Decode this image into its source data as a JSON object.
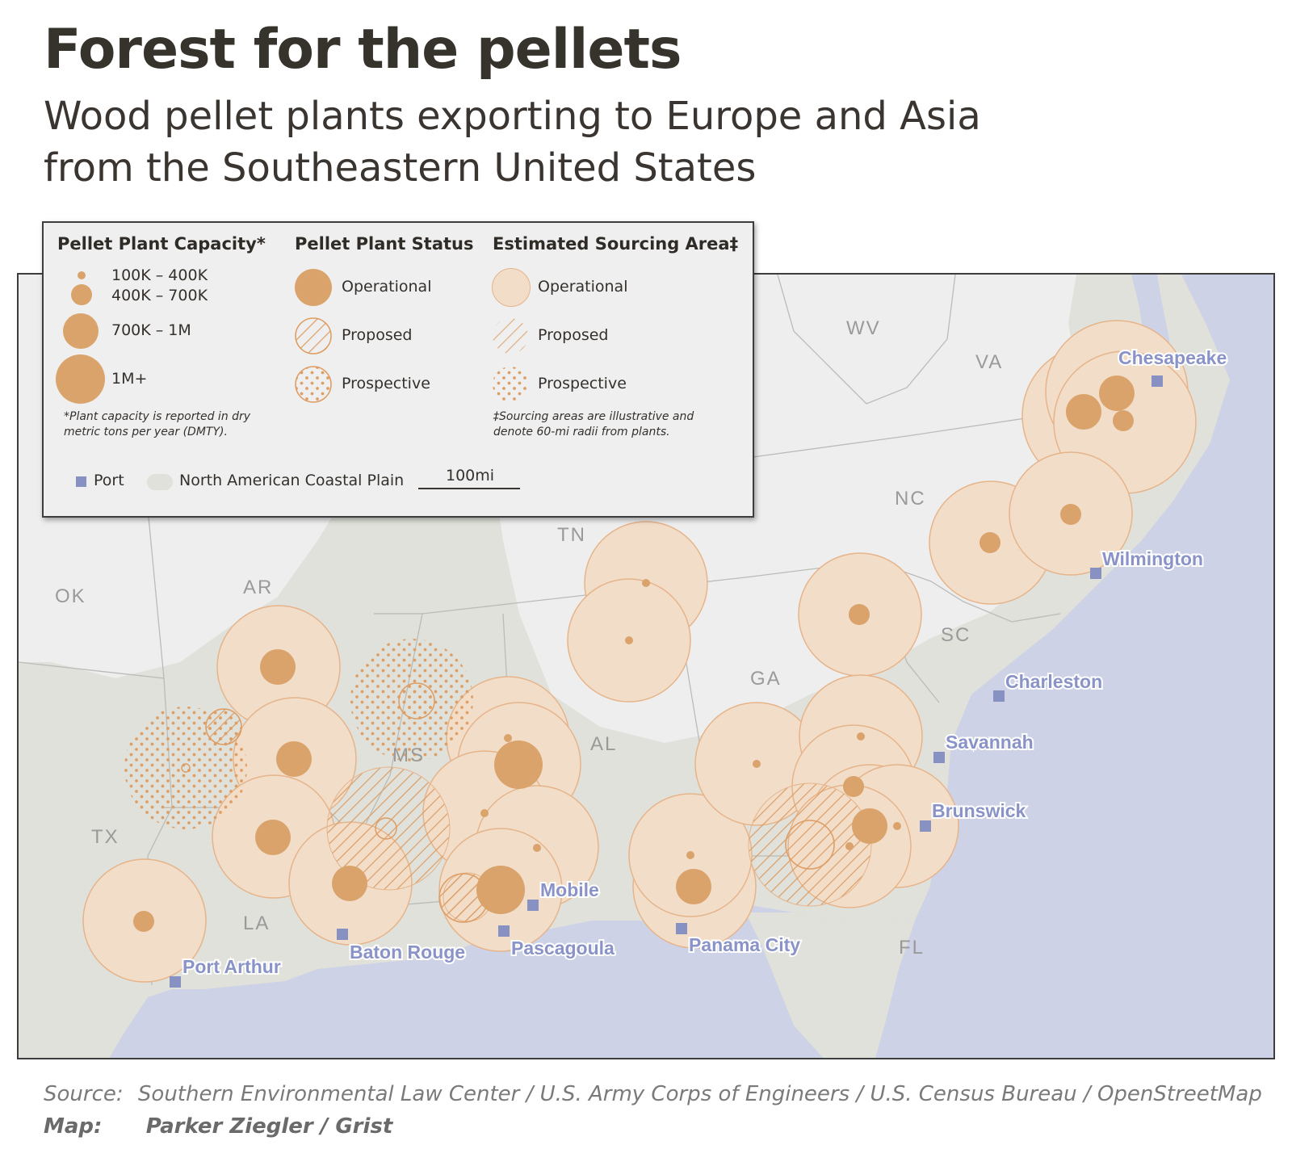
{
  "title": "Forest for the pellets",
  "subtitle_line1": "Wood pellet plants exporting to Europe and Asia",
  "subtitle_line2": "from the Southeastern United States",
  "colors": {
    "plant": "#d9a36b",
    "sourcing_fill": "#f2ddc9",
    "sourcing_stroke": "#e6b48a",
    "coastal_plain": "#dfe1da",
    "land": "#eeeeee",
    "water": "#cdd2e6",
    "port": "#8892c2",
    "port_label": "#8a93c7"
  },
  "legend": {
    "capacity": {
      "heading": "Pellet Plant Capacity*",
      "classes": [
        "100K – 400K",
        "400K – 700K",
        "700K – 1M",
        "1M+"
      ],
      "note_line1": "*Plant capacity is reported in dry",
      "note_line2": "metric tons per year (DMTY)."
    },
    "status": {
      "heading": "Pellet Plant Status",
      "items": [
        "Operational",
        "Proposed",
        "Prospective"
      ]
    },
    "sourcing": {
      "heading": "Estimated Sourcing Area‡",
      "items": [
        "Operational",
        "Proposed",
        "Prospective"
      ],
      "note_line1": "‡Sourcing areas are illustrative and",
      "note_line2": "denote 60-mi radii from plants."
    },
    "port_label": "Port",
    "coastal_plain_label": "North American Coastal Plain",
    "scale_label": "100mi"
  },
  "states": [
    "WV",
    "VA",
    "NC",
    "TN",
    "OK",
    "AR",
    "SC",
    "GA",
    "MS",
    "AL",
    "TX",
    "LA",
    "FL"
  ],
  "ports": [
    "Chesapeake",
    "Wilmington",
    "Charleston",
    "Savannah",
    "Brunswick",
    "Mobile",
    "Pascagoula",
    "Panama City",
    "Baton Rouge",
    "Port Arthur"
  ],
  "plants": [
    {
      "state": "VA",
      "status": "Operational",
      "capacity": "1M+"
    },
    {
      "state": "VA",
      "status": "Operational",
      "capacity": "1M+"
    },
    {
      "state": "VA",
      "status": "Operational",
      "capacity": "400K – 700K"
    },
    {
      "state": "NC",
      "status": "Operational",
      "capacity": "400K – 700K"
    },
    {
      "state": "NC",
      "status": "Operational",
      "capacity": "400K – 700K"
    },
    {
      "state": "SC",
      "status": "Operational",
      "capacity": "400K – 700K"
    },
    {
      "state": "TN",
      "status": "Operational",
      "capacity": "100K – 400K"
    },
    {
      "state": "AL",
      "status": "Operational",
      "capacity": "100K – 400K"
    },
    {
      "state": "AR",
      "status": "Operational",
      "capacity": "700K – 1M"
    },
    {
      "state": "AR",
      "status": "Operational",
      "capacity": "700K – 1M"
    },
    {
      "state": "LA",
      "status": "Operational",
      "capacity": "700K – 1M"
    },
    {
      "state": "LA",
      "status": "Operational",
      "capacity": "700K – 1M"
    },
    {
      "state": "TX",
      "status": "Operational",
      "capacity": "400K – 700K"
    },
    {
      "state": "MS",
      "status": "Operational",
      "capacity": "1M+"
    },
    {
      "state": "MS",
      "status": "Operational",
      "capacity": "100K – 400K"
    },
    {
      "state": "MS",
      "status": "Operational",
      "capacity": "100K – 400K"
    },
    {
      "state": "AL",
      "status": "Operational",
      "capacity": "100K – 400K"
    },
    {
      "state": "MS",
      "status": "Operational",
      "capacity": "1M+"
    },
    {
      "state": "FL",
      "status": "Operational",
      "capacity": "700K – 1M"
    },
    {
      "state": "FL",
      "status": "Operational",
      "capacity": "100K – 400K"
    },
    {
      "state": "GA",
      "status": "Operational",
      "capacity": "100K – 400K"
    },
    {
      "state": "GA",
      "status": "Operational",
      "capacity": "100K – 400K"
    },
    {
      "state": "GA",
      "status": "Operational",
      "capacity": "400K – 700K"
    },
    {
      "state": "GA",
      "status": "Operational",
      "capacity": "1M+"
    },
    {
      "state": "GA",
      "status": "Operational",
      "capacity": "100K – 400K"
    },
    {
      "state": "GA",
      "status": "Operational",
      "capacity": "100K – 400K"
    },
    {
      "state": "AR",
      "status": "Proposed",
      "capacity": "100K – 400K"
    },
    {
      "state": "MS",
      "status": "Prospective",
      "capacity": "400K – 700K"
    },
    {
      "state": "AR",
      "status": "Prospective",
      "capacity": "400K – 700K"
    },
    {
      "state": "LA",
      "status": "Proposed",
      "capacity": "400K – 700K"
    },
    {
      "state": "MS",
      "status": "Proposed",
      "capacity": "700K – 1M"
    },
    {
      "state": "GA",
      "status": "Proposed",
      "capacity": "700K – 1M"
    }
  ],
  "footer": {
    "source_label": "Source:",
    "source_text": "Southern Environmental Law Center / U.S. Army Corps of Engineers / U.S. Census Bureau / OpenStreetMap",
    "map_label": "Map:",
    "map_text": "Parker Ziegler / Grist"
  }
}
